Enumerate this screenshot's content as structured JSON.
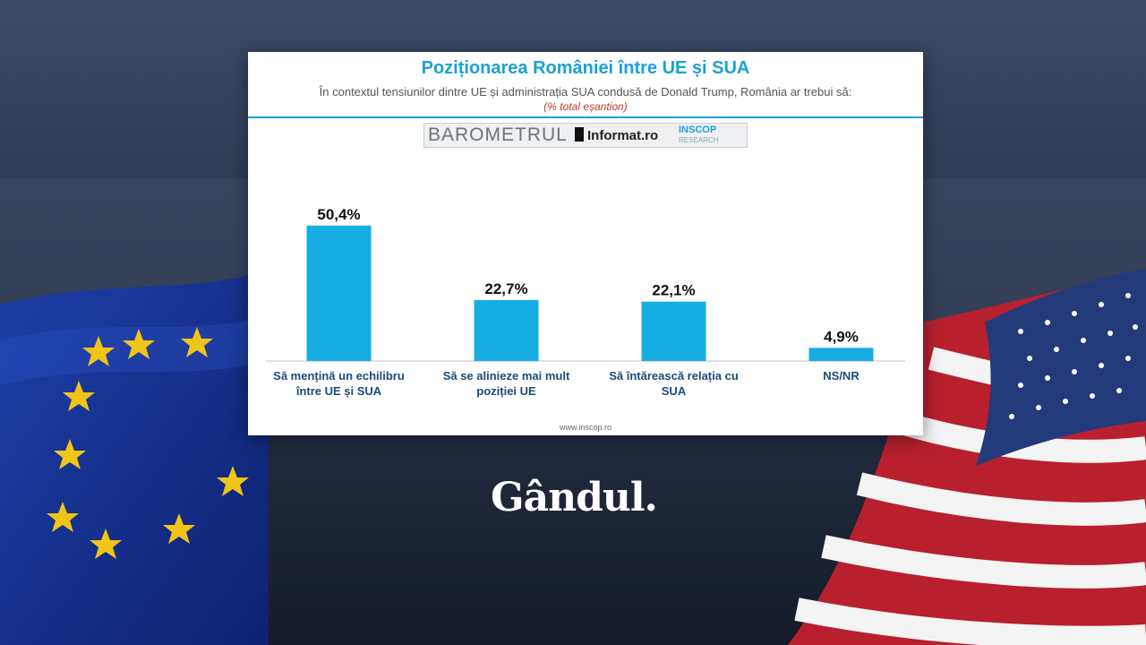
{
  "chart_data": {
    "type": "bar",
    "title": "Poziționarea României între UE și SUA",
    "subtitle": "În contextul tensiunilor dintre UE și administrația SUA condusă de Donald Trump, România ar trebui să:",
    "note": "(% total eșantion)",
    "categories": [
      [
        "Să mențină un echilibru",
        "între UE și SUA"
      ],
      [
        "Să se alinieze mai mult",
        "poziției UE"
      ],
      [
        "Să întărească relația cu",
        "SUA"
      ],
      [
        "NS/NR"
      ]
    ],
    "values": [
      50.4,
      22.7,
      22.1,
      4.9
    ],
    "value_labels": [
      "50,4%",
      "22,7%",
      "22,1%",
      "4,9%"
    ],
    "ylim": [
      0,
      60
    ],
    "grid": false,
    "bar_color": "#16ade3"
  },
  "logos": {
    "barometer": "BAROMETRUL",
    "informat": "Informat.ro",
    "inscop": "INSCOP",
    "inscop_sub": "RESEARCH"
  },
  "footer": "www.inscop.ro",
  "brand": "Gândul."
}
